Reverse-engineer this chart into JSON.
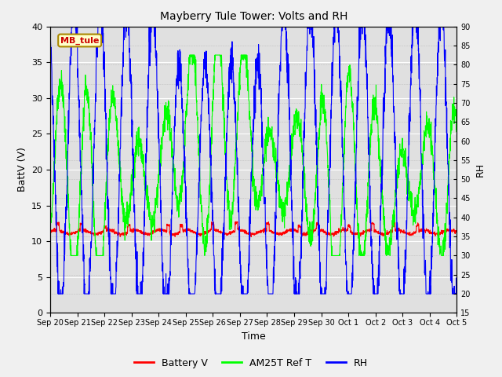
{
  "title": "Mayberry Tule Tower: Volts and RH",
  "xlabel": "Time",
  "ylabel_left": "BattV (V)",
  "ylabel_right": "RH",
  "legend_label": "MB_tule",
  "series_labels": [
    "Battery V",
    "AM25T Ref T",
    "RH"
  ],
  "series_colors": [
    "red",
    "lime",
    "blue"
  ],
  "ylim_left": [
    0,
    40
  ],
  "ylim_right": [
    15,
    90
  ],
  "yticks_left": [
    0,
    5,
    10,
    15,
    20,
    25,
    30,
    35,
    40
  ],
  "yticks_right": [
    15,
    20,
    25,
    30,
    35,
    40,
    45,
    50,
    55,
    60,
    65,
    70,
    75,
    80,
    85,
    90
  ],
  "xtick_labels": [
    "Sep 20",
    "Sep 21",
    "Sep 22",
    "Sep 23",
    "Sep 24",
    "Sep 25",
    "Sep 26",
    "Sep 27",
    "Sep 28",
    "Sep 29",
    "Sep 30",
    "Oct 1",
    "Oct 2",
    "Oct 3",
    "Oct 4",
    "Oct 5"
  ],
  "bg_color": "#e0e0e0",
  "fig_color": "#f0f0f0",
  "annotation_color": "#cc0000",
  "annotation_bg": "#ffffcc",
  "annotation_edge": "#aa8800",
  "linewidth": 0.8
}
